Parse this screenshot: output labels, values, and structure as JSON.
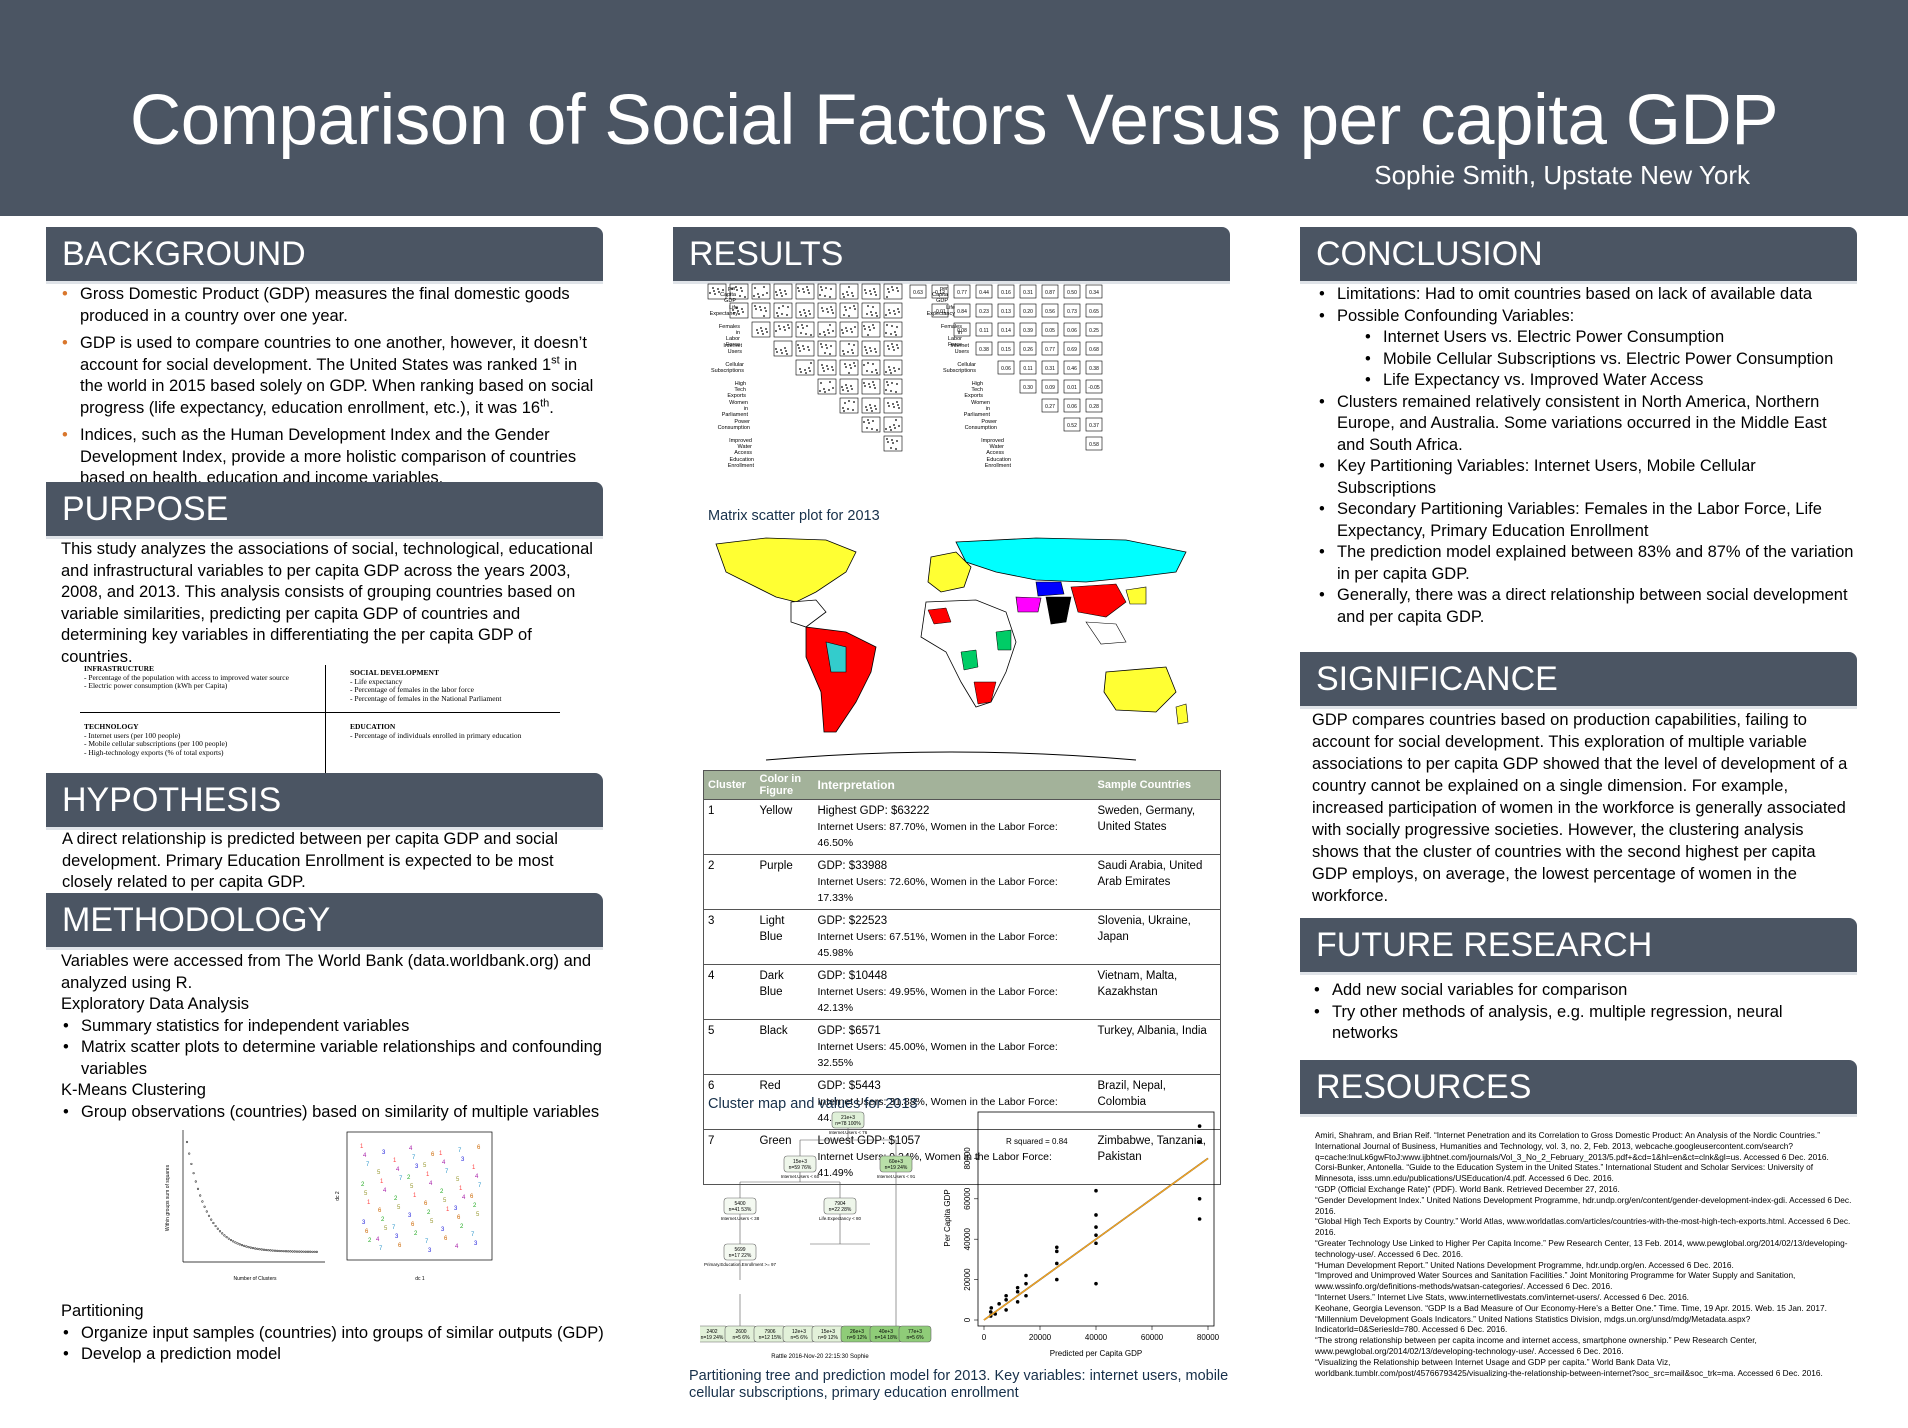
{
  "header": {
    "title": "Comparison of Social Factors Versus per capita GDP",
    "author": "Sophie Smith, Upstate New York"
  },
  "sections": {
    "background": "BACKGROUND",
    "purpose": "PURPOSE",
    "hypothesis": "HYPOTHESIS",
    "methodology": "METHODOLOGY",
    "results": "RESULTS",
    "conclusion": "CONCLUSION",
    "significance": "SIGNIFICANCE",
    "future": "FUTURE RESEARCH",
    "resources": "RESOURCES"
  },
  "background": {
    "b1": "Gross Domestic Product (GDP) measures the final domestic goods produced in a country over one year.",
    "b2a": "GDP is used to compare countries to one another, however, it doesn’t account for social development. The United States was ranked 1",
    "b2sup1": "st",
    "b2b": " in the world in 2015 based solely on GDP. When ranking based on social progress (life expectancy, education enrollment, etc.), it was 16",
    "b2sup2": "th",
    "b2c": ".",
    "b3": "Indices, such as the Human Development Index and the Gender Development Index, provide a more holistic comparison of countries based on health, education and income variables."
  },
  "purpose": {
    "text": "This study analyzes the associations of social, technological, educational and infrastructural variables to per capita GDP across the years 2003, 2008, and 2013. This analysis consists of grouping countries based on variable similarities, predicting per capita GDP of countries and determining key variables in differentiating the per capita GDP of countries.",
    "infra_title": "INFRASTRUCTURE",
    "infra_1": "- Percentage of the population with access to improved water source",
    "infra_2": "- Electric power consumption (kWh per Capita)",
    "social_title": "SOCIAL DEVELOPMENT",
    "social_1": "- Life expectancy",
    "social_2": "- Percentage of females in the labor force",
    "social_3": "- Percentage of females in the National Parliament",
    "tech_title": "TECHNOLOGY",
    "tech_1": "- Internet users (per 100 people)",
    "tech_2": "- Mobile cellular subscriptions (per 100 people)",
    "tech_3": "- High-technology exports (% of total exports)",
    "edu_title": "EDUCATION",
    "edu_1": "- Percentage of individuals enrolled in primary education"
  },
  "hypothesis": {
    "text": "A direct relationship is predicted between per capita GDP and social development. Primary Education Enrollment is expected to be most closely related to per capita GDP."
  },
  "methodology": {
    "intro": "Variables were accessed from The World Bank (data.worldbank.org) and analyzed using R.",
    "eda": "Exploratory Data Analysis",
    "eda_1": "Summary statistics for independent variables",
    "eda_2": "Matrix scatter plots to determine variable relationships and confounding variables",
    "kmeans": "K-Means Clustering",
    "kmeans_1": "Group observations (countries) based on similarity of multiple variables",
    "partitioning": "Partitioning",
    "part_1": "Organize input samples (countries) into groups of similar outputs (GDP)",
    "part_2": "Develop a prediction model",
    "elbow_ylabel": "Within groups sum of squares",
    "elbow_xlabel": "Number of Clusters",
    "scatter_xlabel": "dc 1",
    "scatter_ylabel": "dc 2"
  },
  "results": {
    "matrix_caption": "Matrix scatter plot for 2013",
    "map_caption": "Cluster map and values for 2013",
    "tree_caption": "Partitioning tree and prediction model for 2013. Key variables: internet users, mobile cellular subscriptions, primary education enrollment",
    "tree_footer": "Rattle 2016-Nov-20 22:15:30 Sophie",
    "matrix_labels": [
      "per Capita GDP",
      "Life Expectancy",
      "Females in Labor Force",
      "Internet Users",
      "Cellular Subscriptions",
      "High Tech Exports",
      "Women in Parliament",
      "Power Consumption",
      "Improved Water Access",
      "Education Enrollment"
    ],
    "corr_values": [
      [
        "0.63",
        "0.12",
        "0.77",
        "0.44",
        "0.16",
        "0.31",
        "0.87",
        "0.50",
        "0.34"
      ],
      [
        "-0.01",
        "0.84",
        "0.23",
        "0.13",
        "0.20",
        "0.56",
        "0.73",
        "0.65"
      ],
      [
        "0.08",
        "0.11",
        "0.14",
        "0.39",
        "0.05",
        "0.06",
        "0.25"
      ],
      [
        "0.38",
        "0.15",
        "0.26",
        "0.77",
        "0.69",
        "0.68"
      ],
      [
        "0.06",
        "0.11",
        "0.31",
        "0.46",
        "0.38"
      ],
      [
        "0.30",
        "0.09",
        "0.01",
        "-0.05"
      ],
      [
        "0.27",
        "0.06",
        "0.28"
      ],
      [
        "0.52",
        "0.37"
      ],
      [
        "0.58"
      ]
    ],
    "cluster_table": {
      "headers": [
        "Cluster",
        "Color in Figure",
        "Interpretation",
        "Sample Countries"
      ],
      "rows": [
        {
          "n": "1",
          "color": "Yellow",
          "gdp": "Highest GDP: $63222",
          "detail": "Internet Users: 87.70%, Women in the Labor Force: 46.50%",
          "countries": "Sweden, Germany, United States"
        },
        {
          "n": "2",
          "color": "Purple",
          "gdp": "GDP: $33988",
          "detail": "Internet Users: 72.60%, Women in the Labor Force: 17.33%",
          "countries": "Saudi Arabia, United Arab Emirates"
        },
        {
          "n": "3",
          "color": "Light Blue",
          "gdp": "GDP: $22523",
          "detail": "Internet Users: 67.51%, Women in the Labor Force: 45.98%",
          "countries": "Slovenia, Ukraine, Japan"
        },
        {
          "n": "4",
          "color": "Dark Blue",
          "gdp": "GDP: $10448",
          "detail": "Internet Users: 49.95%, Women in the Labor Force: 42.13%",
          "countries": "Vietnam, Malta, Kazakhstan"
        },
        {
          "n": "5",
          "color": "Black",
          "gdp": "GDP: $6571",
          "detail": "Internet Users: 45.00%, Women in the Labor Force: 32.55%",
          "countries": "Turkey, Albania, India"
        },
        {
          "n": "6",
          "color": "Red",
          "gdp": "GDP: $5443",
          "detail": "Internet Users: 31.88%, Women in the Labor Force: 44.20%",
          "countries": "Brazil, Nepal, Colombia"
        },
        {
          "n": "7",
          "color": "Green",
          "gdp": "Lowest GDP: $1057",
          "detail": "Internet Users: 9.24%, Women in the Labor Force: 41.49%",
          "countries": "Zimbabwe, Tanzania, Pakistan"
        }
      ]
    },
    "tree": {
      "root": "21e+3 n=78 100%",
      "root_split": "Internet.Users < 76",
      "n_left": "15e+3 n=59 76%",
      "n_left_split": "Internet.Users < 60",
      "n_right": "60e+3 n=19 24%",
      "n_right_split": "Internet.Users < 91",
      "n_ll": "5400 n=41 53%",
      "n_ll_split": "Internet.Users < 38",
      "n_lr": "",
      "n_lr_split": "Life.Expectancy < 80",
      "n_lr2": "7904 n=22 28%",
      "n_lr2_split": "Mobile.Cellular.Subscriptions < 142",
      "n_ll2": "5699 n=17 22%",
      "n_ll2_split": "Primary.Education.Enrollment >= 97",
      "leaves": [
        "2402 n=19 24%",
        "2600 n=5 6%",
        "7906 n=12 15%",
        "12e+3 n=5 6%",
        "15e+3 n=9 12%",
        "26e+3 n=9 12%",
        "40e+3 n=14 18%",
        "77e+3 n=5 6%"
      ]
    }
  },
  "chart_data": {
    "type": "scatter",
    "title": "",
    "annotation": "R squared = 0.84",
    "xlabel": "Predicted per Capita GDP",
    "ylabel": "Per Capita GDP",
    "xlim": [
      0,
      80000
    ],
    "ylim": [
      0,
      100000
    ],
    "xticks": [
      0,
      20000,
      40000,
      60000,
      80000
    ],
    "yticks": [
      0,
      20000,
      40000,
      60000,
      80000
    ],
    "points": [
      [
        2400,
        2000
      ],
      [
        2400,
        4000
      ],
      [
        2600,
        6000
      ],
      [
        4000,
        3000
      ],
      [
        5400,
        8000
      ],
      [
        7900,
        5000
      ],
      [
        7900,
        10000
      ],
      [
        7900,
        12000
      ],
      [
        12000,
        9000
      ],
      [
        12000,
        14000
      ],
      [
        12000,
        16000
      ],
      [
        15000,
        12000
      ],
      [
        15000,
        18000
      ],
      [
        15000,
        22000
      ],
      [
        26000,
        20000
      ],
      [
        26000,
        28000
      ],
      [
        26000,
        34000
      ],
      [
        26000,
        36000
      ],
      [
        40000,
        18000
      ],
      [
        40000,
        38000
      ],
      [
        40000,
        42000
      ],
      [
        40000,
        46000
      ],
      [
        40000,
        52000
      ],
      [
        40000,
        64000
      ],
      [
        77000,
        50000
      ],
      [
        77000,
        60000
      ],
      [
        77000,
        88000
      ],
      [
        77000,
        96000
      ]
    ],
    "fit_line": [
      [
        0,
        0
      ],
      [
        80000,
        80000
      ]
    ]
  },
  "conclusion": {
    "c1": "Limitations: Had to omit countries based on lack of available data",
    "c2": "Possible Confounding Variables:",
    "c2a": "Internet Users vs. Electric Power Consumption",
    "c2b": "Mobile Cellular Subscriptions vs. Electric Power Consumption",
    "c2c": "Life Expectancy vs. Improved Water Access",
    "c3": "Clusters remained relatively consistent in North America, Northern Europe, and Australia. Some variations occurred in the Middle East and South Africa.",
    "c4": "Key Partitioning Variables: Internet Users, Mobile Cellular Subscriptions",
    "c5": "Secondary Partitioning Variables: Females in the Labor Force, Life Expectancy, Primary Education Enrollment",
    "c6": "The prediction model explained between 83% and 87% of the variation in per capita GDP.",
    "c7": "Generally, there was a direct relationship between social development and per capita GDP."
  },
  "significance": {
    "text": "GDP compares countries based on production capabilities, failing to account for social development. This exploration of multiple variable associations to per capita GDP showed that the level of development of a country cannot be explained on a single dimension. For example, increased participation of women in the workforce is generally associated with socially progressive societies. However, the clustering analysis shows that the cluster of countries with the second highest per capita GDP employs, on average,  the lowest percentage of women in the workforce."
  },
  "future": {
    "f1": "Add new social variables for comparison",
    "f2": "Try other methods of analysis, e.g. multiple regression, neural networks"
  },
  "resources": [
    "Amiri, Shahram, and Brian Reif. “Internet Penetration and its Correlation to Gross Domestic Product: An Analysis of the Nordic Countries.” International Journal of Business, Humanities and Technology, vol. 3, no. 2, Feb. 2013, webcache.googleusercontent.com/search?q=cache:lnuLk6gwFtoJ:www.ijbhtnet.com/journals/Vol_3_No_2_February_2013/5.pdf+&cd=1&hl=en&ct=clnk&gl=us. Accessed 6 Dec. 2016.",
    "Corsi-Bunker, Antonella. “Guide to the Education System in the United States.” International Student and Scholar Services: University of Minnesota, isss.umn.edu/publications/USEducation/4.pdf. Accessed 6 Dec. 2016.",
    "“GDP (Official Exchange Rate)” (PDF). World Bank. Retrieved December 27, 2016.",
    "“Gender Development Index.” United Nations Development Programme, hdr.undp.org/en/content/gender-development-index-gdi. Accessed 6 Dec. 2016.",
    "“Global High Tech Exports by Country.” World Atlas, www.worldatlas.com/articles/countries-with-the-most-high-tech-exports.html. Accessed 6 Dec. 2016.",
    "“Greater Technology Use Linked to Higher Per Capita Income.” Pew Research Center, 13 Feb. 2014, www.pewglobal.org/2014/02/13/developing-technology-use/. Accessed 6 Dec. 2016.",
    "“Human Development Report.” United Nations Development Programme, hdr.undp.org/en. Accessed 6 Dec. 2016.",
    "“Improved and Unimproved Water Sources and Sanitation Facilities.” Joint Monitoring Programme for Water Supply and Sanitation, www.wssinfo.org/definitions-methods/watsan-categories/. Accessed 6 Dec. 2016.",
    "“Internet Users.” Internet Live Stats, www.internetlivestats.com/internet-users/. Accessed 6 Dec. 2016.",
    "Keohane, Georgia Levenson. “GDP Is a Bad Measure of Our Economy-Here’s a Better One.” Time. Time, 19 Apr. 2015. Web. 15 Jan. 2017.",
    "“Millennium Development Goals Indicators.” United Nations Statistics Division, mdgs.un.org/unsd/mdg/Metadata.aspx?IndicatorId=0&SeriesId=780. Accessed 6 Dec. 2016.",
    "“The strong relationship between per capita income and internet access, smartphone ownership.” Pew Research Center, www.pewglobal.org/2014/02/13/developing-technology-use/. Accessed 6 Dec. 2016.",
    "“Visualizing the Relationship between Internet Usage and GDP per capita.” World Bank Data Viz, worldbank.tumblr.com/post/45766793425/visualizing-the-relationship-between-internet?soc_src=mail&soc_trk=ma. Accessed 6 Dec. 2016."
  ]
}
